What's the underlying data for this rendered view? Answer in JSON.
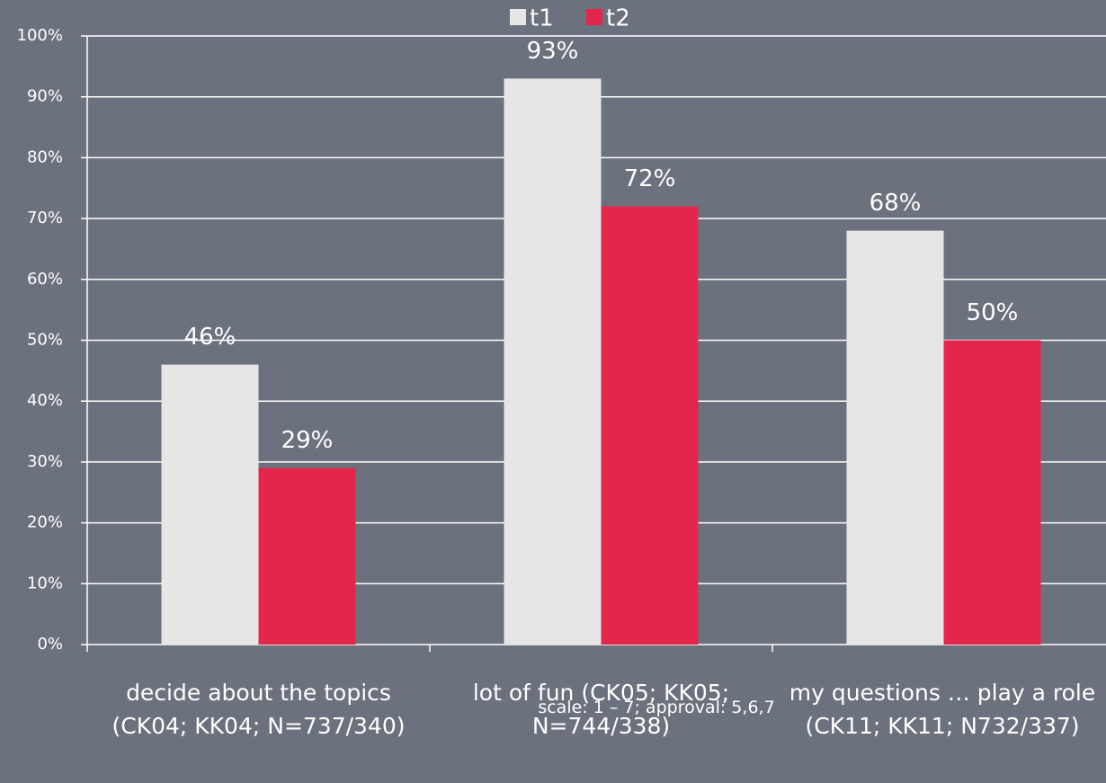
{
  "chart_data": {
    "type": "bar",
    "categories": [
      "decide about the topics (CK04; KK04; N=737/340)",
      "lot of fun (CK05; KK05; N=744/338)",
      "my questions … play a role (CK11; KK11; N732/337)"
    ],
    "series": [
      {
        "name": "t1",
        "color": "#e6e6e6",
        "values": [
          46,
          93,
          68
        ],
        "value_labels": [
          "46%",
          "93%",
          "68%"
        ]
      },
      {
        "name": "t2",
        "color": "#e4264b",
        "values": [
          29,
          72,
          50
        ],
        "value_labels": [
          "29%",
          "72%",
          "50%"
        ]
      }
    ],
    "ylim": [
      0,
      100
    ],
    "yticks": [
      {
        "value": 0,
        "label": "0%"
      },
      {
        "value": 10,
        "label": "10%"
      },
      {
        "value": 20,
        "label": "20%"
      },
      {
        "value": 30,
        "label": "30%"
      },
      {
        "value": 40,
        "label": "40%"
      },
      {
        "value": 50,
        "label": "50%"
      },
      {
        "value": 60,
        "label": "60%"
      },
      {
        "value": 70,
        "label": "70%"
      },
      {
        "value": 80,
        "label": "80%"
      },
      {
        "value": 90,
        "label": "90%"
      },
      {
        "value": 100,
        "label": "100%"
      }
    ],
    "grid": true,
    "legend": "top",
    "annotation": "scale: 1 – 7; approval: 5,6,7"
  }
}
